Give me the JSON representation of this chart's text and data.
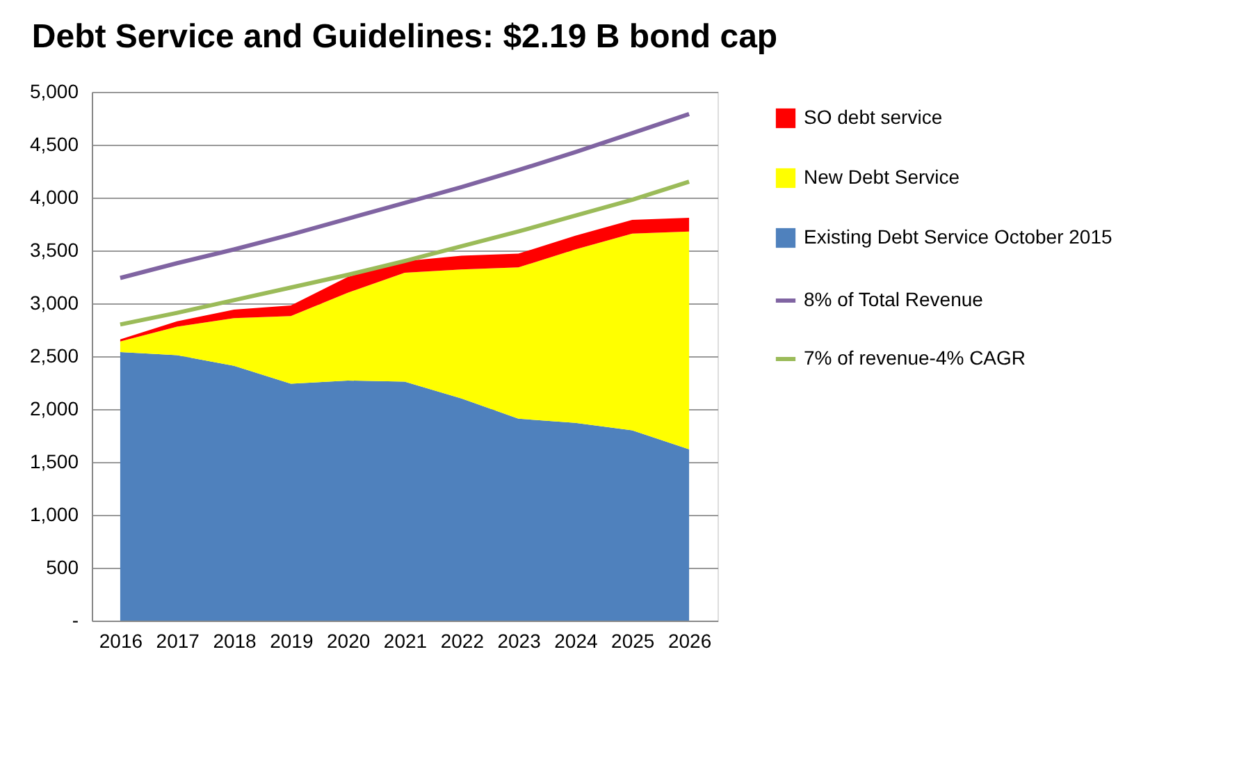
{
  "chart_data": {
    "type": "area",
    "title": "Debt Service and Guidelines: $2.19 B bond cap",
    "categories": [
      "2016",
      "2017",
      "2018",
      "2019",
      "2020",
      "2021",
      "2022",
      "2023",
      "2024",
      "2025",
      "2026"
    ],
    "stacked": true,
    "series": [
      {
        "name": "Existing Debt Service October 2015",
        "color": "#4f81bd",
        "values": [
          2540,
          2510,
          2410,
          2240,
          2270,
          2260,
          2100,
          1910,
          1870,
          1800,
          1620
        ]
      },
      {
        "name": "New Debt Service",
        "color": "#ffff00",
        "values": [
          100,
          270,
          450,
          640,
          830,
          1030,
          1220,
          1430,
          1640,
          1860,
          2060
        ]
      },
      {
        "name": "SO debt service",
        "color": "#ff0000",
        "values": [
          20,
          50,
          80,
          100,
          150,
          110,
          130,
          130,
          130,
          130,
          130
        ]
      },
      {
        "name": "8% of Total Revenue",
        "type": "line",
        "color": "#8064a2",
        "values": [
          3240,
          3380,
          3510,
          3650,
          3800,
          3950,
          4100,
          4260,
          4430,
          4610,
          4790
        ]
      },
      {
        "name": "7% of revenue-4% CAGR",
        "type": "line",
        "color": "#9bbb59",
        "values": [
          2800,
          2910,
          3030,
          3150,
          3270,
          3400,
          3540,
          3680,
          3830,
          3980,
          4150
        ]
      }
    ],
    "ylim": [
      0,
      5000
    ],
    "yticks": [
      {
        "value": 0,
        "label": "-"
      },
      {
        "value": 500,
        "label": "500"
      },
      {
        "value": 1000,
        "label": "1,000"
      },
      {
        "value": 1500,
        "label": "1,500"
      },
      {
        "value": 2000,
        "label": "2,000"
      },
      {
        "value": 2500,
        "label": "2,500"
      },
      {
        "value": 3000,
        "label": "3,000"
      },
      {
        "value": 3500,
        "label": "3,500"
      },
      {
        "value": 4000,
        "label": "4,000"
      },
      {
        "value": 4500,
        "label": "4,500"
      },
      {
        "value": 5000,
        "label": "5,000"
      }
    ],
    "grid": "y",
    "legend": "right",
    "line_style": "solid",
    "marker": "none"
  }
}
